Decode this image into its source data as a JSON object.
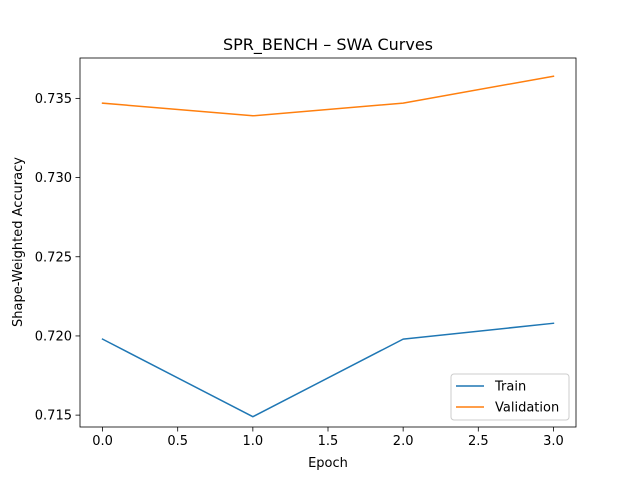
{
  "chart_data": {
    "type": "line",
    "title": "SPR_BENCH – SWA Curves",
    "xlabel": "Epoch",
    "ylabel": "Shape-Weighted Accuracy",
    "x": [
      0,
      1,
      2,
      3
    ],
    "series": [
      {
        "name": "Train",
        "values": [
          0.7198,
          0.7149,
          0.7198,
          0.7208
        ],
        "color": "#1f77b4"
      },
      {
        "name": "Validation",
        "values": [
          0.7347,
          0.7339,
          0.7347,
          0.7364
        ],
        "color": "#ff7f0e"
      }
    ],
    "xlim": [
      -0.15,
      3.15
    ],
    "ylim": [
      0.71425,
      0.73755
    ],
    "xticks": [
      0.0,
      0.5,
      1.0,
      1.5,
      2.0,
      2.5,
      3.0
    ],
    "xtick_labels": [
      "0.0",
      "0.5",
      "1.0",
      "1.5",
      "2.0",
      "2.5",
      "3.0"
    ],
    "yticks": [
      0.715,
      0.72,
      0.725,
      0.73,
      0.735
    ],
    "ytick_labels": [
      "0.715",
      "0.720",
      "0.725",
      "0.730",
      "0.735"
    ],
    "grid": false,
    "legend_position": "lower-right"
  }
}
